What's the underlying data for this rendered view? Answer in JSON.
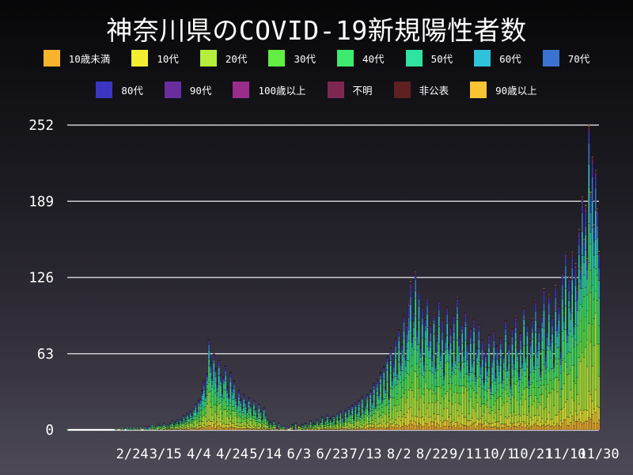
{
  "title": "神奈川県のCOVID-19新規陽性者数",
  "colors": {
    "background_top": "#060607",
    "background_bottom": "#4c4955",
    "grid": "#cdcdd2",
    "baseline": "#ffffff",
    "text": "#ffffff",
    "bar_edge": "#1b1b22"
  },
  "legend": {
    "row_group_indices": [
      [
        0,
        1,
        2,
        3,
        4,
        5,
        6,
        7
      ],
      [
        8,
        9,
        10,
        11,
        12,
        13
      ]
    ]
  },
  "chart_data": {
    "type": "bar",
    "stacked": true,
    "title": "神奈川県のCOVID-19新規陽性者数",
    "xlabel": "",
    "ylabel": "",
    "ylim": [
      0,
      252
    ],
    "y_ticks": [
      0,
      63,
      126,
      189,
      252
    ],
    "y_tick_labels": [
      "0",
      "63",
      "126",
      "189",
      "252"
    ],
    "x_start_date": "1/16",
    "x_tick_labels": [
      "2/24",
      "3/15",
      "4/4",
      "4/24",
      "5/14",
      "6/3",
      "6/23",
      "7/13",
      "8/2",
      "8/22",
      "9/11",
      "10/1",
      "10/21",
      "11/10",
      "11/30"
    ],
    "x_tick_day_index": [
      39,
      59,
      79,
      99,
      119,
      139,
      159,
      179,
      199,
      219,
      239,
      259,
      279,
      299,
      319
    ],
    "grid": true,
    "legend_position": "top",
    "series_groups": [
      {
        "name": "10歳未満",
        "color": "#f9b32c",
        "share": 0.048
      },
      {
        "name": "10代",
        "color": "#f2ef31",
        "share": 0.078
      },
      {
        "name": "20代",
        "color": "#b6ef3b",
        "share": 0.215
      },
      {
        "name": "30代",
        "color": "#63ee44",
        "share": 0.165
      },
      {
        "name": "40代",
        "color": "#3dec6e",
        "share": 0.148
      },
      {
        "name": "50代",
        "color": "#2fe3a0",
        "share": 0.128
      },
      {
        "name": "60代",
        "color": "#2fc2d8",
        "share": 0.078
      },
      {
        "name": "70代",
        "color": "#3b74d0",
        "share": 0.062
      },
      {
        "name": "80代",
        "color": "#3a35c2",
        "share": 0.042
      },
      {
        "name": "90代",
        "color": "#6a2d9e",
        "share": 0.018
      },
      {
        "name": "100歳以上",
        "color": "#9a2c8c",
        "share": 0.004
      },
      {
        "name": "不明",
        "color": "#7e2753",
        "share": 0.006
      },
      {
        "name": "非公表",
        "color": "#5e2020",
        "share": 0.004
      },
      {
        "name": "90歳以上",
        "color": "#fbc433",
        "share": 0.004
      }
    ],
    "daily_totals": [
      1,
      0,
      0,
      0,
      0,
      0,
      0,
      0,
      0,
      0,
      0,
      0,
      0,
      0,
      0,
      0,
      0,
      0,
      0,
      0,
      0,
      0,
      0,
      0,
      0,
      0,
      0,
      0,
      0,
      1,
      1,
      0,
      1,
      2,
      1,
      0,
      2,
      1,
      2,
      1,
      2,
      1,
      3,
      1,
      2,
      0,
      2,
      3,
      2,
      3,
      2,
      4,
      3,
      2,
      3,
      5,
      3,
      4,
      6,
      4,
      5,
      3,
      6,
      8,
      5,
      7,
      9,
      6,
      10,
      8,
      12,
      9,
      14,
      11,
      16,
      13,
      18,
      22,
      17,
      25,
      26,
      33,
      41,
      29,
      47,
      75,
      56,
      44,
      63,
      51,
      39,
      58,
      46,
      32,
      44,
      53,
      36,
      29,
      48,
      35,
      41,
      28,
      22,
      33,
      26,
      19,
      30,
      24,
      17,
      27,
      21,
      14,
      25,
      18,
      12,
      22,
      16,
      10,
      19,
      13,
      9,
      5,
      7,
      3,
      8,
      4,
      2,
      6,
      3,
      2,
      4,
      1,
      3,
      0,
      2,
      5,
      1,
      6,
      2,
      4,
      2,
      5,
      3,
      6,
      2,
      4,
      8,
      3,
      6,
      4,
      9,
      4,
      7,
      11,
      6,
      9,
      13,
      7,
      10,
      8,
      12,
      6,
      14,
      9,
      16,
      11,
      8,
      17,
      12,
      19,
      14,
      21,
      10,
      23,
      16,
      25,
      13,
      28,
      18,
      22,
      30,
      17,
      33,
      24,
      39,
      21,
      42,
      31,
      48,
      27,
      53,
      35,
      61,
      29,
      68,
      44,
      57,
      76,
      49,
      83,
      58,
      71,
      95,
      62,
      88,
      107,
      123,
      78,
      98,
      131,
      84,
      116,
      69,
      102,
      58,
      93,
      110,
      76,
      88,
      64,
      97,
      55,
      81,
      107,
      66,
      92,
      49,
      78,
      102,
      71,
      86,
      58,
      95,
      63,
      110,
      77,
      54,
      89,
      67,
      98,
      72,
      51,
      84,
      61,
      93,
      47,
      69,
      88,
      56,
      75,
      43,
      66,
      52,
      79,
      38,
      61,
      83,
      49,
      70,
      58,
      77,
      45,
      63,
      91,
      54,
      72,
      39,
      85,
      60,
      94,
      68,
      49,
      81,
      57,
      102,
      63,
      88,
      44,
      75,
      92,
      58,
      107,
      71,
      86,
      50,
      95,
      117,
      64,
      82,
      112,
      76,
      94,
      57,
      120,
      88,
      103,
      67,
      131,
      97,
      147,
      84,
      126,
      103,
      147,
      91,
      138,
      117,
      166,
      135,
      193,
      158,
      186,
      142,
      252,
      197,
      226,
      170,
      215,
      183,
      148
    ]
  }
}
